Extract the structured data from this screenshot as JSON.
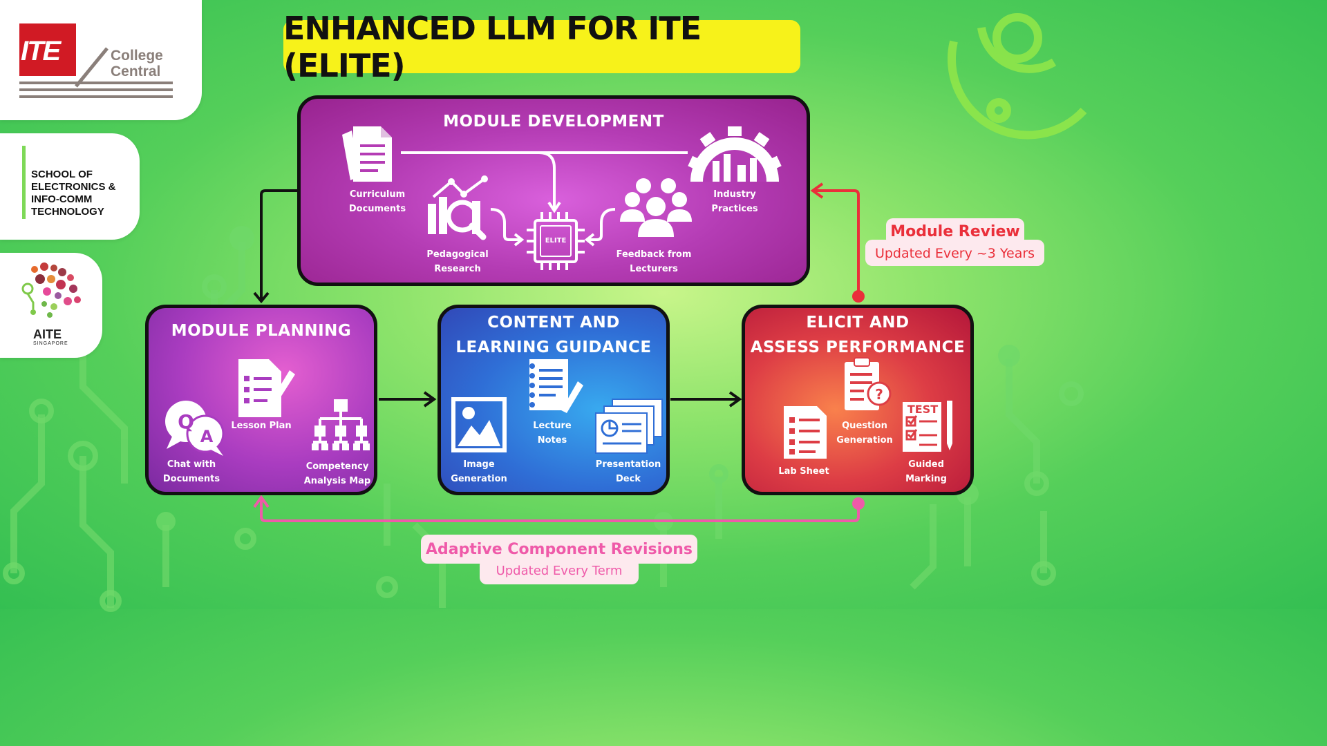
{
  "logos": {
    "ite_letters": "ITE",
    "ite_college_line1": "College",
    "ite_college_line2": "Central",
    "school_lines": [
      "SCHOOL OF",
      "ELECTRONICS &",
      "INFO-COMM",
      "TECHNOLOGY"
    ],
    "aite_name": "AITE",
    "aite_sub": "SINGAPORE"
  },
  "title": "ENHANCED LLM FOR ITE (ELITE)",
  "module_development": {
    "title": "MODULE DEVELOPMENT",
    "chip_label": "ELITE",
    "items": {
      "curriculum": [
        "Curriculum",
        "Documents"
      ],
      "pedagogical": [
        "Pedagogical",
        "Research"
      ],
      "feedback": [
        "Feedback from",
        "Lecturers"
      ],
      "industry": [
        "Industry",
        "Practices"
      ]
    }
  },
  "module_planning": {
    "title": "MODULE PLANNING",
    "items": {
      "lesson_plan": [
        "Lesson Plan"
      ],
      "chat": [
        "Chat with",
        "Documents"
      ],
      "competency": [
        "Competency",
        "Analysis Map"
      ]
    }
  },
  "content_guidance": {
    "title_line1": "CONTENT AND",
    "title_line2": "LEARNING GUIDANCE",
    "items": {
      "lecture_notes": [
        "Lecture",
        "Notes"
      ],
      "image_generation": [
        "Image",
        "Generation"
      ],
      "presentation": [
        "Presentation",
        "Deck"
      ]
    }
  },
  "assess_performance": {
    "title_line1": "ELICIT AND",
    "title_line2": "ASSESS PERFORMANCE",
    "test_label": "TEST",
    "items": {
      "question_generation": [
        "Question",
        "Generation"
      ],
      "lab_sheet": [
        "Lab Sheet"
      ],
      "guided_marking": [
        "Guided",
        "Marking"
      ]
    }
  },
  "module_review": {
    "title": "Module Review",
    "subtitle": "Updated Every ~3 Years"
  },
  "adaptive_revisions": {
    "title": "Adaptive Component Revisions",
    "subtitle": "Updated Every Term"
  },
  "colors": {
    "title_bg": "#f7f21a",
    "review_arrow": "#ea2f3a",
    "adaptive_arrow": "#ef5aa9",
    "dev_box": "#b43cb4",
    "plan_box": "#a93cc0",
    "content_box": "#2f6ed6",
    "assess_box": "#dd3d45"
  }
}
